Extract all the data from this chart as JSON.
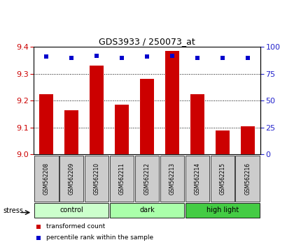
{
  "title": "GDS3933 / 250073_at",
  "samples": [
    "GSM562208",
    "GSM562209",
    "GSM562210",
    "GSM562211",
    "GSM562212",
    "GSM562213",
    "GSM562214",
    "GSM562215",
    "GSM562216"
  ],
  "transformed_counts": [
    9.225,
    9.165,
    9.33,
    9.185,
    9.28,
    9.385,
    9.225,
    9.09,
    9.105
  ],
  "percentile_ranks": [
    91,
    90,
    92,
    90,
    91,
    92,
    90,
    90,
    90
  ],
  "groups": [
    {
      "label": "control",
      "indices": [
        0,
        1,
        2
      ],
      "color": "#ccffcc"
    },
    {
      "label": "dark",
      "indices": [
        3,
        4,
        5
      ],
      "color": "#aaffaa"
    },
    {
      "label": "high light",
      "indices": [
        6,
        7,
        8
      ],
      "color": "#44cc44"
    }
  ],
  "ylim": [
    9.0,
    9.4
  ],
  "yticks": [
    9.0,
    9.1,
    9.2,
    9.3,
    9.4
  ],
  "right_yticks": [
    0,
    25,
    50,
    75,
    100
  ],
  "bar_color": "#cc0000",
  "dot_color": "#0000cc",
  "bar_width": 0.55,
  "bar_color_rgb": "#cc0000",
  "dot_color_rgb": "#2222cc",
  "xlabel_color": "#cc0000",
  "ylabel_right_color": "#2222cc",
  "stress_label": "stress",
  "legend_bar_label": "transformed count",
  "legend_dot_label": "percentile rank within the sample",
  "plot_bg_color": "#ffffff",
  "label_box_color": "#cccccc",
  "fig_width": 4.2,
  "fig_height": 3.54,
  "dpi": 100
}
